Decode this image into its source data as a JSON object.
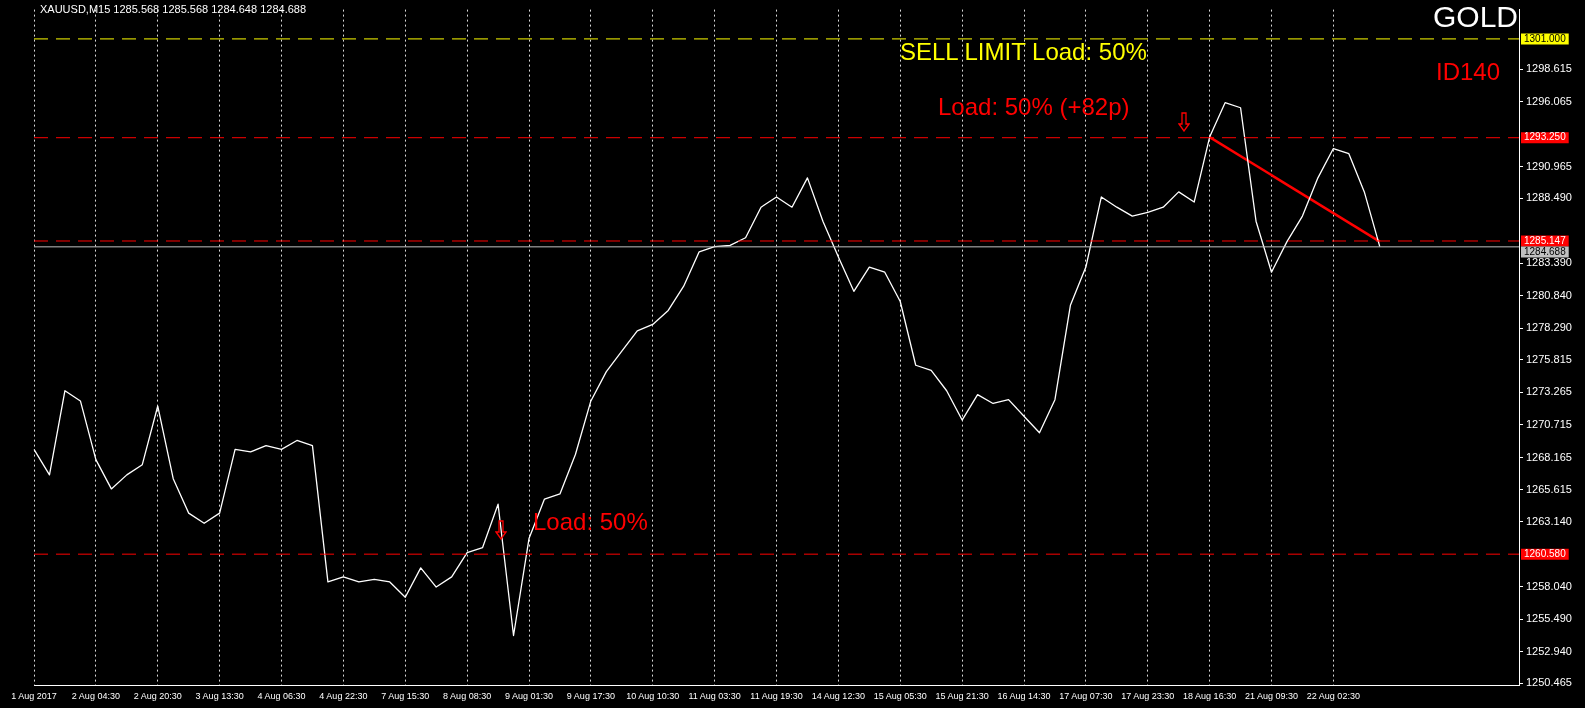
{
  "chart_data": {
    "type": "line",
    "categories": [
      "1 Aug 2017",
      null,
      null,
      null,
      "2 Aug 04:30",
      null,
      null,
      null,
      "2 Aug 20:30",
      null,
      null,
      null,
      "3 Aug 13:30",
      null,
      null,
      null,
      "4 Aug 06:30",
      null,
      null,
      null,
      "4 Aug 22:30",
      null,
      null,
      null,
      "7 Aug 15:30",
      null,
      null,
      null,
      "8 Aug 08:30",
      null,
      null,
      null,
      "9 Aug 01:30",
      null,
      null,
      null,
      "9 Aug 17:30",
      null,
      null,
      null,
      "10 Aug 10:30",
      null,
      null,
      null,
      "11 Aug 03:30",
      null,
      null,
      null,
      "11 Aug 19:30",
      null,
      null,
      null,
      "14 Aug 12:30",
      null,
      null,
      null,
      "15 Aug 05:30",
      null,
      null,
      null,
      "15 Aug 21:30",
      null,
      null,
      null,
      "16 Aug 14:30",
      null,
      null,
      null,
      "17 Aug 07:30",
      null,
      null,
      null,
      "17 Aug 23:30",
      null,
      null,
      null,
      "18 Aug 16:30",
      null,
      null,
      null,
      "21 Aug 09:30",
      null,
      null,
      null,
      "22 Aug 02:30",
      null,
      null,
      null,
      null,
      null,
      null,
      null,
      null,
      null,
      null,
      null,
      null
    ],
    "series": [
      {
        "color": "#ffffff",
        "values": [
          1268.8,
          1266.8,
          1273.4,
          1272.6,
          1268.0,
          1265.7,
          1266.8,
          1267.6,
          1272.2,
          1266.5,
          1263.8,
          1263.0,
          1263.8,
          1268.8,
          1268.6,
          1269.1,
          1268.8,
          1269.5,
          1269.1,
          1258.4,
          1258.8,
          1258.4,
          1258.6,
          1258.4,
          1257.2,
          1259.5,
          1258.0,
          1258.8,
          1260.7,
          1261.1,
          1264.5,
          1254.2,
          1261.8,
          1264.9,
          1265.3,
          1268.4,
          1272.6,
          1274.9,
          1276.5,
          1278.1,
          1278.6,
          1279.7,
          1281.6,
          1284.3,
          1284.7,
          1284.8,
          1285.4,
          1287.8,
          1288.6,
          1287.8,
          1290.1,
          1286.7,
          1283.9,
          1281.2,
          1283.1,
          1282.7,
          1280.4,
          1275.4,
          1275.0,
          1273.4,
          1271.1,
          1273.1,
          1272.4,
          1272.7,
          1271.4,
          1270.1,
          1272.7,
          1280.1,
          1283.1,
          1288.6,
          1287.8,
          1287.1,
          1287.4,
          1287.8,
          1289.0,
          1288.2,
          1293.3,
          1296.0,
          1295.6,
          1286.7,
          1282.7,
          1285.1,
          1287.1,
          1290.1,
          1292.4,
          1292.0,
          1289.0,
          1284.7,
          null,
          null,
          null,
          null,
          null,
          null,
          null,
          null,
          null
        ]
      },
      {
        "type": "line",
        "color": "#ff0000",
        "values": [
          null,
          null,
          null,
          null,
          null,
          null,
          null,
          null,
          null,
          null,
          null,
          null,
          null,
          null,
          null,
          null,
          null,
          null,
          null,
          null,
          null,
          null,
          null,
          null,
          null,
          null,
          null,
          null,
          null,
          null,
          null,
          null,
          null,
          null,
          null,
          null,
          null,
          null,
          null,
          null,
          null,
          null,
          null,
          null,
          null,
          null,
          null,
          null,
          null,
          null,
          null,
          null,
          null,
          null,
          null,
          null,
          null,
          null,
          null,
          null,
          null,
          null,
          null,
          null,
          null,
          null,
          null,
          null,
          null,
          null,
          null,
          null,
          null,
          null,
          null,
          null,
          1293.3,
          null,
          null,
          null,
          null,
          null,
          null,
          null,
          null,
          null,
          null,
          1285.1,
          null,
          null,
          null,
          null,
          null,
          null,
          null,
          null,
          null
        ]
      }
    ],
    "ylim": [
      1250.3,
      1303.3
    ],
    "yticks": [
      {
        "value": 1250.465,
        "label": "1250.465"
      },
      {
        "value": 1252.94,
        "label": "1252.940"
      },
      {
        "value": 1255.49,
        "label": "1255.490"
      },
      {
        "value": 1258.04,
        "label": "1258.040"
      },
      {
        "value": 1263.14,
        "label": "1263.140"
      },
      {
        "value": 1265.615,
        "label": "1265.615"
      },
      {
        "value": 1268.165,
        "label": "1268.165"
      },
      {
        "value": 1270.715,
        "label": "1270.715"
      },
      {
        "value": 1273.265,
        "label": "1273.265"
      },
      {
        "value": 1275.815,
        "label": "1275.815"
      },
      {
        "value": 1278.29,
        "label": "1278.290"
      },
      {
        "value": 1280.84,
        "label": "1280.840"
      },
      {
        "value": 1283.39,
        "label": "1283.390"
      },
      {
        "value": 1288.49,
        "label": "1288.490"
      },
      {
        "value": 1290.965,
        "label": "1290.965"
      },
      {
        "value": 1296.065,
        "label": "1296.065"
      },
      {
        "value": 1298.615,
        "label": "1298.615"
      }
    ],
    "ref_lines": [
      {
        "axis": "y",
        "value": 1301.0,
        "label": "1301.000",
        "color": "#ffff00",
        "line_style": "dashed"
      },
      {
        "axis": "y",
        "value": 1293.25,
        "label": "1293.250",
        "color": "#ff0000",
        "line_style": "dashed"
      },
      {
        "axis": "y",
        "value": 1285.147,
        "label": "1285.147",
        "color": "#ff0000",
        "line_style": "dashed"
      },
      {
        "axis": "y",
        "value": 1260.58,
        "label": "1260.580",
        "color": "#ff0000",
        "line_style": "dashed"
      },
      {
        "axis": "y",
        "value": 1284.688,
        "label": "1284.688",
        "color": "#c0c0c0",
        "line_style": "solid"
      }
    ],
    "annotations": [
      "XAUUSD,M15  1285.568 1285.568 1284.648 1284.688",
      "GOLD",
      "ID140",
      "SELL LIMIT Load: 50%",
      "Load: 50% (+82p)",
      "Load: 50%"
    ],
    "grid": "x",
    "legend": false,
    "marker": "none",
    "line_style": "solid"
  }
}
